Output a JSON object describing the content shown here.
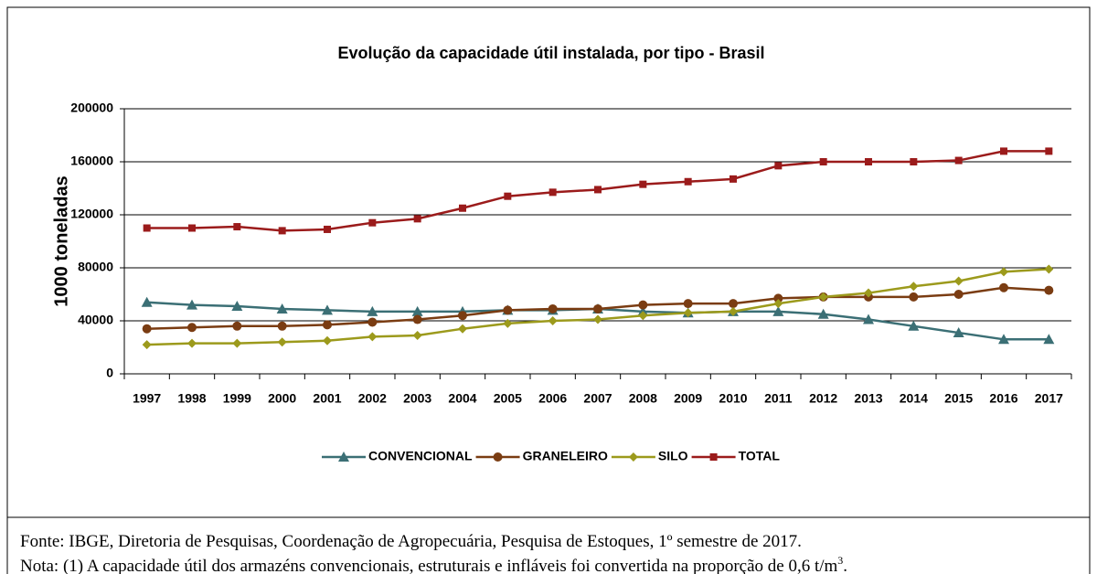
{
  "chart_data": {
    "type": "line",
    "title": "Evolução da capacidade útil instalada, por tipo - Brasil",
    "y_label": "1000 toneladas",
    "categories": [
      "1997",
      "1998",
      "1999",
      "2000",
      "2001",
      "2002",
      "2003",
      "2004",
      "2005",
      "2006",
      "2007",
      "2008",
      "2009",
      "2010",
      "2011",
      "2012",
      "2013",
      "2014",
      "2015",
      "2016",
      "2017"
    ],
    "series": [
      {
        "name": "CONVENCIONAL",
        "color": "#3b6f75",
        "marker": "triangle",
        "values": [
          54000,
          52000,
          51000,
          49000,
          48000,
          47000,
          47000,
          47000,
          48000,
          48000,
          49000,
          47000,
          46000,
          47000,
          47000,
          45000,
          41000,
          36000,
          31000,
          26000,
          26000
        ]
      },
      {
        "name": "GRANELEIRO",
        "color": "#7a3c12",
        "marker": "circle",
        "values": [
          34000,
          35000,
          36000,
          36000,
          37000,
          39000,
          41000,
          44000,
          48000,
          49000,
          49000,
          52000,
          53000,
          53000,
          57000,
          58000,
          58000,
          58000,
          60000,
          65000,
          63000
        ]
      },
      {
        "name": "SILO",
        "color": "#9c9a1c",
        "marker": "diamond",
        "values": [
          22000,
          23000,
          23000,
          24000,
          25000,
          28000,
          29000,
          34000,
          38000,
          40000,
          41000,
          44000,
          46000,
          47000,
          53000,
          58000,
          61000,
          66000,
          70000,
          77000,
          79000
        ]
      },
      {
        "name": "TOTAL",
        "color": "#9b1b1b",
        "marker": "square",
        "values": [
          110000,
          110000,
          111000,
          108000,
          109000,
          114000,
          117000,
          125000,
          134000,
          137000,
          139000,
          143000,
          145000,
          147000,
          157000,
          160000,
          160000,
          160000,
          161000,
          168000,
          168000
        ]
      }
    ],
    "ylim": [
      0,
      200000
    ],
    "yticks": [
      0,
      40000,
      80000,
      120000,
      160000,
      200000
    ],
    "grid": true,
    "legend": "bottom"
  },
  "footnotes": {
    "source": "Fonte: IBGE, Diretoria de Pesquisas, Coordenação de Agropecuária, Pesquisa de Estoques, 1º semestre de 2017.",
    "note": "Nota: (1) A capacidade útil dos armazéns convencionais, estruturais e infláveis foi convertida na proporção de 0,6 t/m",
    "note_sup": "3",
    "note_end": "."
  }
}
